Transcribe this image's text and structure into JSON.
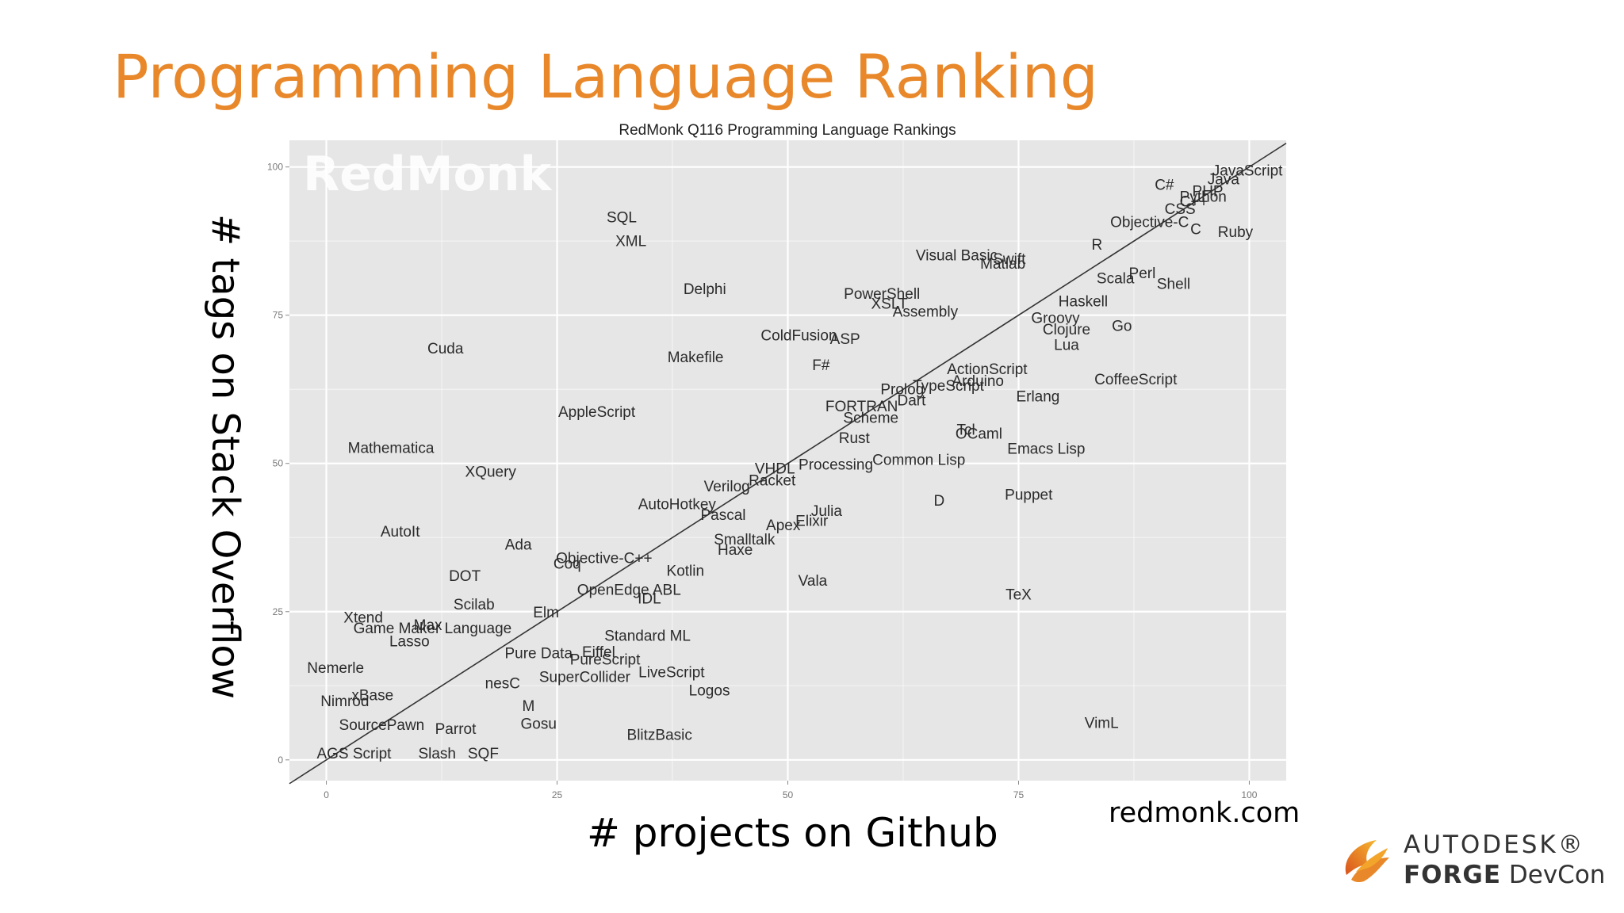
{
  "slide": {
    "title": "Programming Language Ranking",
    "y_caption": "# tags on Stack Overflow",
    "x_caption": "# projects on Github",
    "source": "redmonk.com",
    "logo": {
      "line1": "AUTODESK®",
      "line2_bold": "FORGE",
      "line2_rest": " DevCon"
    }
  },
  "colors": {
    "title": "#E8882A",
    "panel": "#E6E6E6",
    "grid": "#FFFFFF",
    "label": "#2B2B2B",
    "watermark": "#FFFFFF"
  },
  "chart_data": {
    "type": "scatter",
    "title": "RedMonk Q116 Programming Language Rankings",
    "watermark": "RedMonk",
    "xlabel": "",
    "ylabel": "",
    "xlim": [
      -4,
      104
    ],
    "ylim": [
      -3.5,
      104.5
    ],
    "xticks": [
      0,
      25,
      50,
      75,
      100
    ],
    "yticks": [
      0,
      25,
      50,
      75,
      100
    ],
    "grid": true,
    "reference_line": "y = x",
    "points": [
      {
        "label": "JavaScript",
        "x": 99.8,
        "y": 99.3
      },
      {
        "label": "Java",
        "x": 97.2,
        "y": 97.8
      },
      {
        "label": "PHP",
        "x": 95.5,
        "y": 95.8
      },
      {
        "label": "Python",
        "x": 95.0,
        "y": 94.9
      },
      {
        "label": "C#",
        "x": 90.8,
        "y": 96.9
      },
      {
        "label": "CSS",
        "x": 92.5,
        "y": 92.8
      },
      {
        "label": "C++",
        "x": 94.0,
        "y": 94.1
      },
      {
        "label": "C",
        "x": 94.2,
        "y": 89.4
      },
      {
        "label": "Objective-C",
        "x": 89.2,
        "y": 90.6
      },
      {
        "label": "Ruby",
        "x": 98.5,
        "y": 88.9
      },
      {
        "label": "R",
        "x": 83.5,
        "y": 86.8
      },
      {
        "label": "Shell",
        "x": 91.8,
        "y": 80.2
      },
      {
        "label": "Perl",
        "x": 88.4,
        "y": 82.0
      },
      {
        "label": "Scala",
        "x": 85.5,
        "y": 81.1
      },
      {
        "label": "Haskell",
        "x": 82.0,
        "y": 77.2
      },
      {
        "label": "Go",
        "x": 86.2,
        "y": 73.1
      },
      {
        "label": "Groovy",
        "x": 79.0,
        "y": 74.4
      },
      {
        "label": "Clojure",
        "x": 80.2,
        "y": 72.5
      },
      {
        "label": "Lua",
        "x": 80.2,
        "y": 69.9
      },
      {
        "label": "CoffeeScript",
        "x": 87.7,
        "y": 64.1
      },
      {
        "label": "Swift",
        "x": 74.0,
        "y": 84.4
      },
      {
        "label": "Matlab",
        "x": 73.3,
        "y": 83.6
      },
      {
        "label": "Visual Basic",
        "x": 68.3,
        "y": 85.0
      },
      {
        "label": "PowerShell",
        "x": 60.2,
        "y": 78.5
      },
      {
        "label": "XSLT",
        "x": 61.0,
        "y": 76.8
      },
      {
        "label": "Assembly",
        "x": 64.9,
        "y": 75.5
      },
      {
        "label": "ColdFusion",
        "x": 51.2,
        "y": 71.5
      },
      {
        "label": "ASP",
        "x": 56.2,
        "y": 70.9
      },
      {
        "label": "F#",
        "x": 53.6,
        "y": 66.5
      },
      {
        "label": "ActionScript",
        "x": 71.6,
        "y": 65.8
      },
      {
        "label": "Arduino",
        "x": 70.6,
        "y": 63.8
      },
      {
        "label": "TypeScript",
        "x": 67.4,
        "y": 63.0
      },
      {
        "label": "Prolog",
        "x": 62.4,
        "y": 62.4
      },
      {
        "label": "Dart",
        "x": 63.4,
        "y": 60.5
      },
      {
        "label": "FORTRAN",
        "x": 58.0,
        "y": 59.5
      },
      {
        "label": "Scheme",
        "x": 59.0,
        "y": 57.6
      },
      {
        "label": "Erlang",
        "x": 77.1,
        "y": 61.2
      },
      {
        "label": "Tcl",
        "x": 69.3,
        "y": 55.6
      },
      {
        "label": "OCaml",
        "x": 70.7,
        "y": 54.9
      },
      {
        "label": "Emacs Lisp",
        "x": 78.0,
        "y": 52.4
      },
      {
        "label": "Rust",
        "x": 57.2,
        "y": 54.2
      },
      {
        "label": "Common Lisp",
        "x": 64.2,
        "y": 50.5
      },
      {
        "label": "Processing",
        "x": 55.2,
        "y": 49.7
      },
      {
        "label": "VHDL",
        "x": 48.6,
        "y": 49.0
      },
      {
        "label": "Racket",
        "x": 48.3,
        "y": 47.0
      },
      {
        "label": "Verilog",
        "x": 43.4,
        "y": 46.0
      },
      {
        "label": "D",
        "x": 66.4,
        "y": 43.6
      },
      {
        "label": "Puppet",
        "x": 76.1,
        "y": 44.6
      },
      {
        "label": "AutoHotkey",
        "x": 38.0,
        "y": 43.0
      },
      {
        "label": "Pascal",
        "x": 43.0,
        "y": 41.2
      },
      {
        "label": "Julia",
        "x": 54.2,
        "y": 41.9
      },
      {
        "label": "Elixir",
        "x": 52.6,
        "y": 40.2
      },
      {
        "label": "Apex",
        "x": 49.5,
        "y": 39.5
      },
      {
        "label": "Smalltalk",
        "x": 45.3,
        "y": 37.1
      },
      {
        "label": "Haxe",
        "x": 44.3,
        "y": 35.3
      },
      {
        "label": "Objective-C++",
        "x": 30.1,
        "y": 33.9
      },
      {
        "label": "Coq",
        "x": 26.1,
        "y": 33.0
      },
      {
        "label": "Kotlin",
        "x": 38.9,
        "y": 31.8
      },
      {
        "label": "Vala",
        "x": 52.7,
        "y": 30.1
      },
      {
        "label": "OpenEdge ABL",
        "x": 32.8,
        "y": 28.6
      },
      {
        "label": "IDL",
        "x": 35.0,
        "y": 27.1
      },
      {
        "label": "TeX",
        "x": 75.0,
        "y": 27.8
      },
      {
        "label": "Elm",
        "x": 23.8,
        "y": 24.8
      },
      {
        "label": "Standard ML",
        "x": 34.8,
        "y": 20.8
      },
      {
        "label": "Pure Data",
        "x": 23.0,
        "y": 17.9
      },
      {
        "label": "Eiffel",
        "x": 29.5,
        "y": 18.1
      },
      {
        "label": "PureScript",
        "x": 30.2,
        "y": 16.8
      },
      {
        "label": "SuperCollider",
        "x": 28.0,
        "y": 13.9
      },
      {
        "label": "LiveScript",
        "x": 37.4,
        "y": 14.7
      },
      {
        "label": "Logos",
        "x": 41.5,
        "y": 11.6
      },
      {
        "label": "nesC",
        "x": 19.1,
        "y": 12.8
      },
      {
        "label": "M",
        "x": 21.9,
        "y": 9.0
      },
      {
        "label": "Gosu",
        "x": 23.0,
        "y": 6.0
      },
      {
        "label": "BlitzBasic",
        "x": 36.1,
        "y": 4.1
      },
      {
        "label": "VimL",
        "x": 84.0,
        "y": 6.1
      },
      {
        "label": "Cuda",
        "x": 12.9,
        "y": 69.3
      },
      {
        "label": "SQL",
        "x": 32.0,
        "y": 91.4
      },
      {
        "label": "XML",
        "x": 33.0,
        "y": 87.4
      },
      {
        "label": "Delphi",
        "x": 41.0,
        "y": 79.3
      },
      {
        "label": "Makefile",
        "x": 40.0,
        "y": 67.8
      },
      {
        "label": "AppleScript",
        "x": 29.3,
        "y": 58.6
      },
      {
        "label": "Mathematica",
        "x": 7.0,
        "y": 52.5
      },
      {
        "label": "XQuery",
        "x": 17.8,
        "y": 48.5
      },
      {
        "label": "AutoIt",
        "x": 8.0,
        "y": 38.4
      },
      {
        "label": "Ada",
        "x": 20.8,
        "y": 36.2
      },
      {
        "label": "DOT",
        "x": 15.0,
        "y": 30.9
      },
      {
        "label": "Scilab",
        "x": 16.0,
        "y": 26.1
      },
      {
        "label": "Xtend",
        "x": 4.0,
        "y": 23.9
      },
      {
        "label": "Max",
        "x": 11.0,
        "y": 22.6
      },
      {
        "label": "Game Maker Language",
        "x": 11.5,
        "y": 22.1
      },
      {
        "label": "Lasso",
        "x": 9.0,
        "y": 19.9
      },
      {
        "label": "Nemerle",
        "x": 1.0,
        "y": 15.4
      },
      {
        "label": "Nimrod",
        "x": 2.0,
        "y": 9.8
      },
      {
        "label": "xBase",
        "x": 5.0,
        "y": 10.8
      },
      {
        "label": "SourcePawn",
        "x": 6.0,
        "y": 5.8
      },
      {
        "label": "Parrot",
        "x": 14.0,
        "y": 5.1
      },
      {
        "label": "AGS Script",
        "x": 3.0,
        "y": 1.0
      },
      {
        "label": "Slash",
        "x": 12.0,
        "y": 1.0
      },
      {
        "label": "SQF",
        "x": 17.0,
        "y": 1.0
      }
    ]
  }
}
